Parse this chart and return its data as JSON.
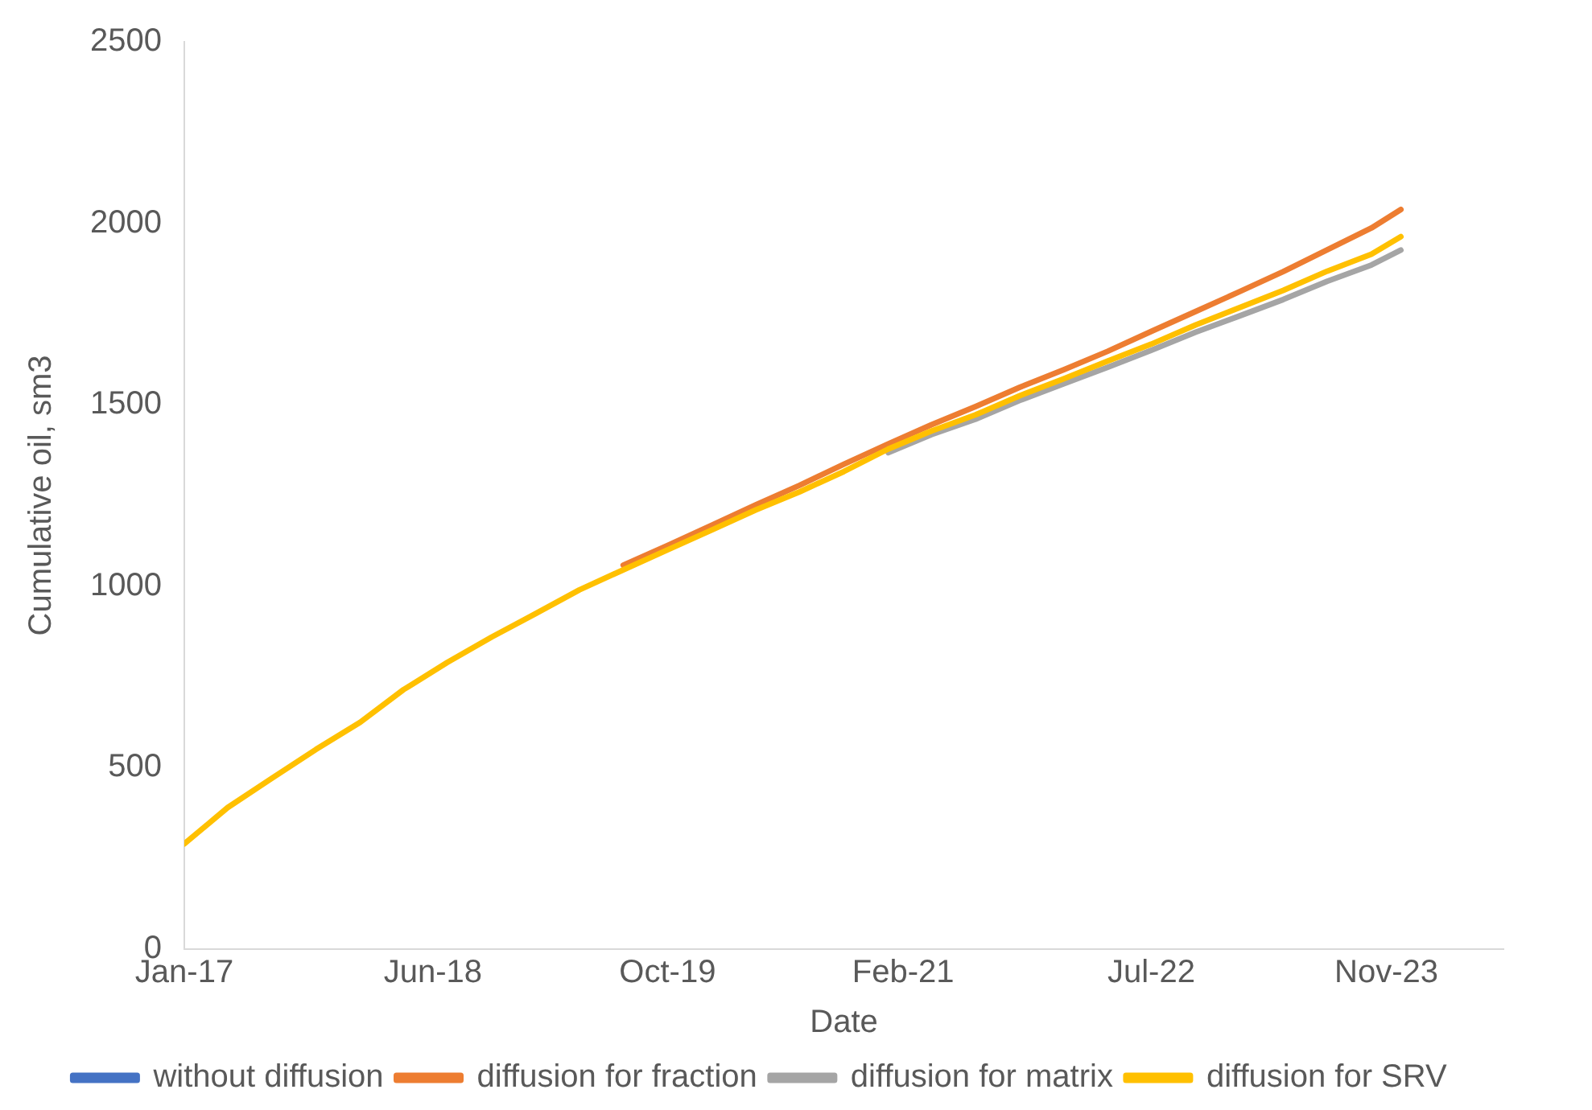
{
  "chart_data": {
    "type": "line",
    "xlabel": "Date",
    "ylabel": "Cumulative oil, sm3",
    "x": [
      "2017-01",
      "2017-04",
      "2017-07",
      "2017-10",
      "2018-01",
      "2018-04",
      "2018-07",
      "2018-10",
      "2019-01",
      "2019-04",
      "2019-07",
      "2019-10",
      "2020-01",
      "2020-04",
      "2020-07",
      "2020-10",
      "2021-01",
      "2021-04",
      "2021-07",
      "2021-10",
      "2022-01",
      "2022-04",
      "2022-07",
      "2022-10",
      "2023-01",
      "2023-04",
      "2023-07",
      "2023-10",
      "2023-12"
    ],
    "series": [
      {
        "name": "without diffusion",
        "color": "#4472c4",
        "values": [
          null,
          null,
          null,
          null,
          null,
          null,
          null,
          null,
          null,
          null,
          null,
          null,
          null,
          null,
          null,
          null,
          null,
          null,
          null,
          null,
          null,
          null,
          null,
          null,
          null,
          null,
          null,
          null,
          null
        ]
      },
      {
        "name": "diffusion for fraction",
        "color": "#ed7d31",
        "values": [
          null,
          null,
          null,
          null,
          null,
          null,
          null,
          null,
          null,
          null,
          1058,
          1112,
          1168,
          1224,
          1278,
          1336,
          1392,
          1445,
          1495,
          1548,
          1597,
          1647,
          1702,
          1757,
          1812,
          1867,
          1927,
          1987,
          2038
        ]
      },
      {
        "name": "diffusion for matrix",
        "color": "#a5a5a5",
        "values": [
          null,
          null,
          null,
          null,
          null,
          null,
          null,
          null,
          null,
          null,
          null,
          null,
          null,
          null,
          null,
          null,
          1368,
          1418,
          1460,
          1512,
          1558,
          1603,
          1650,
          1700,
          1745,
          1790,
          1840,
          1885,
          1926
        ]
      },
      {
        "name": "diffusion for SRV",
        "color": "#ffc000",
        "values": [
          290,
          390,
          470,
          550,
          625,
          715,
          790,
          860,
          925,
          990,
          1045,
          1100,
          1155,
          1210,
          1260,
          1316,
          1378,
          1428,
          1472,
          1525,
          1572,
          1620,
          1667,
          1720,
          1768,
          1815,
          1868,
          1915,
          1963
        ]
      }
    ],
    "xlim": [
      "2017-01",
      "2024-07"
    ],
    "xticks": [
      {
        "value": "2017-01",
        "label": "Jan-17"
      },
      {
        "value": "2018-06",
        "label": "Jun-18"
      },
      {
        "value": "2019-10",
        "label": "Oct-19"
      },
      {
        "value": "2021-02",
        "label": "Feb-21"
      },
      {
        "value": "2022-07",
        "label": "Jul-22"
      },
      {
        "value": "2023-11",
        "label": "Nov-23"
      }
    ],
    "ylim": [
      0,
      2500
    ],
    "yticks": [
      0,
      500,
      1000,
      1500,
      2000,
      2500
    ],
    "grid": false,
    "legend": "bottom",
    "marker": "none",
    "line_style": "solid"
  }
}
